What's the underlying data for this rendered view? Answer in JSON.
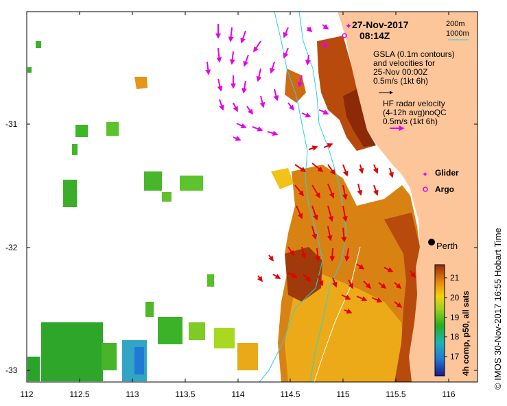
{
  "map": {
    "date": "27-Nov-2017",
    "time": "08:14Z",
    "contour_legend": [
      "200m",
      "1000m"
    ],
    "gsla_text": [
      "GSLA (0.1m contours)",
      "and velocities for",
      "25-Nov 00:00Z",
      "0.5m/s (1kt 6h)"
    ],
    "hf_text": [
      "HF radar velocity",
      "(4-12h avg)noQC",
      "0.5m/s (1kt 6h)"
    ],
    "glider_label": "Glider",
    "argo_label": "Argo",
    "city_label": "Perth",
    "footer": "© IMOS 30-Nov-2017 16:55 Hobart Time",
    "x_ticks": [
      "112",
      "112.5",
      "113",
      "113.5",
      "114",
      "114.5",
      "115",
      "115.5",
      "116"
    ],
    "y_ticks": [
      "-31",
      "-32",
      "-33"
    ],
    "colorbar": {
      "label": "4h comp, p50, all sats",
      "ticks": [
        "21",
        "20",
        "19",
        "18",
        "17"
      ]
    },
    "colors": {
      "land": "#fdc69a",
      "hf_arrows": "#e600e6",
      "gsla_arrows": "#e60000",
      "contour": "#22d3e6"
    }
  }
}
